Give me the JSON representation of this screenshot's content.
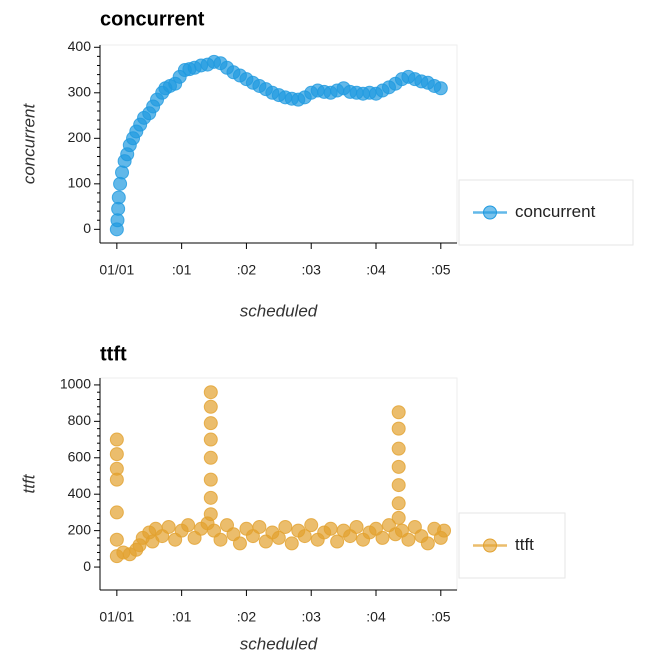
{
  "chart_data": [
    {
      "type": "scatter",
      "title": "concurrent",
      "x_label": "scheduled",
      "y_label": "concurrent",
      "xlim": [
        -0.26,
        5.25
      ],
      "ylim": [
        -30,
        405
      ],
      "xticks": [
        {
          "value": 0,
          "label": "01/01"
        },
        {
          "value": 1,
          "label": ":01"
        },
        {
          "value": 2,
          "label": ":02"
        },
        {
          "value": 3,
          "label": ":03"
        },
        {
          "value": 4,
          "label": ":04"
        },
        {
          "value": 5,
          "label": ":05"
        }
      ],
      "yticks": [
        0,
        100,
        200,
        300,
        400
      ],
      "legend": "right",
      "series": [
        {
          "name": "concurrent",
          "color": "#1f9ae0",
          "x": [
            0,
            0.01,
            0.02,
            0.03,
            0.05,
            0.08,
            0.12,
            0.16,
            0.2,
            0.25,
            0.3,
            0.36,
            0.42,
            0.5,
            0.56,
            0.62,
            0.7,
            0.75,
            0.82,
            0.9,
            0.97,
            1.05,
            1.12,
            1.2,
            1.3,
            1.4,
            1.5,
            1.6,
            1.7,
            1.8,
            1.9,
            2.0,
            2.1,
            2.2,
            2.3,
            2.4,
            2.5,
            2.6,
            2.7,
            2.8,
            2.9,
            3.0,
            3.1,
            3.2,
            3.3,
            3.4,
            3.5,
            3.6,
            3.7,
            3.8,
            3.9,
            4.0,
            4.1,
            4.2,
            4.3,
            4.4,
            4.5,
            4.6,
            4.7,
            4.8,
            4.9,
            5.0
          ],
          "values": [
            0,
            20,
            45,
            70,
            100,
            125,
            150,
            165,
            185,
            200,
            215,
            230,
            245,
            255,
            270,
            285,
            300,
            310,
            315,
            320,
            335,
            350,
            352,
            355,
            360,
            362,
            368,
            365,
            355,
            345,
            338,
            330,
            322,
            315,
            308,
            300,
            295,
            290,
            287,
            285,
            290,
            300,
            305,
            302,
            300,
            305,
            310,
            302,
            300,
            298,
            300,
            298,
            305,
            312,
            320,
            330,
            335,
            330,
            325,
            322,
            315,
            310
          ]
        }
      ]
    },
    {
      "type": "scatter",
      "title": "ttft",
      "x_label": "scheduled",
      "y_label": "ttft",
      "xlim": [
        -0.26,
        5.25
      ],
      "ylim": [
        -126,
        1038
      ],
      "xticks": [
        {
          "value": 0,
          "label": "01/01"
        },
        {
          "value": 1,
          "label": ":01"
        },
        {
          "value": 2,
          "label": ":02"
        },
        {
          "value": 3,
          "label": ":03"
        },
        {
          "value": 4,
          "label": ":04"
        },
        {
          "value": 5,
          "label": ":05"
        }
      ],
      "yticks": [
        0,
        200,
        400,
        600,
        800,
        1000
      ],
      "legend": "right",
      "series": [
        {
          "name": "ttft",
          "color": "#e2a12e",
          "x": [
            0,
            0,
            0,
            0,
            0,
            0,
            0,
            0.1,
            0.2,
            0.3,
            0.35,
            0.4,
            0.5,
            0.55,
            0.6,
            0.7,
            0.8,
            0.9,
            1.0,
            1.1,
            1.2,
            1.3,
            1.4,
            1.45,
            1.45,
            1.45,
            1.45,
            1.45,
            1.45,
            1.45,
            1.45,
            1.5,
            1.6,
            1.7,
            1.8,
            1.9,
            2.0,
            2.1,
            2.2,
            2.3,
            2.4,
            2.5,
            2.6,
            2.7,
            2.8,
            2.9,
            3.0,
            3.1,
            3.2,
            3.3,
            3.4,
            3.5,
            3.6,
            3.7,
            3.8,
            3.9,
            4.0,
            4.1,
            4.2,
            4.3,
            4.35,
            4.35,
            4.35,
            4.35,
            4.35,
            4.35,
            4.35,
            4.4,
            4.5,
            4.6,
            4.7,
            4.8,
            4.9,
            5.0,
            5.05
          ],
          "values": [
            700,
            620,
            540,
            480,
            300,
            150,
            60,
            80,
            70,
            95,
            120,
            160,
            190,
            140,
            210,
            170,
            220,
            150,
            200,
            230,
            160,
            210,
            240,
            960,
            880,
            790,
            700,
            600,
            480,
            380,
            290,
            200,
            150,
            230,
            180,
            130,
            210,
            170,
            220,
            140,
            190,
            160,
            220,
            130,
            200,
            170,
            230,
            150,
            190,
            210,
            140,
            200,
            170,
            220,
            150,
            190,
            210,
            160,
            230,
            180,
            850,
            760,
            650,
            550,
            450,
            350,
            270,
            200,
            150,
            220,
            170,
            130,
            210,
            160,
            200
          ]
        }
      ]
    }
  ]
}
